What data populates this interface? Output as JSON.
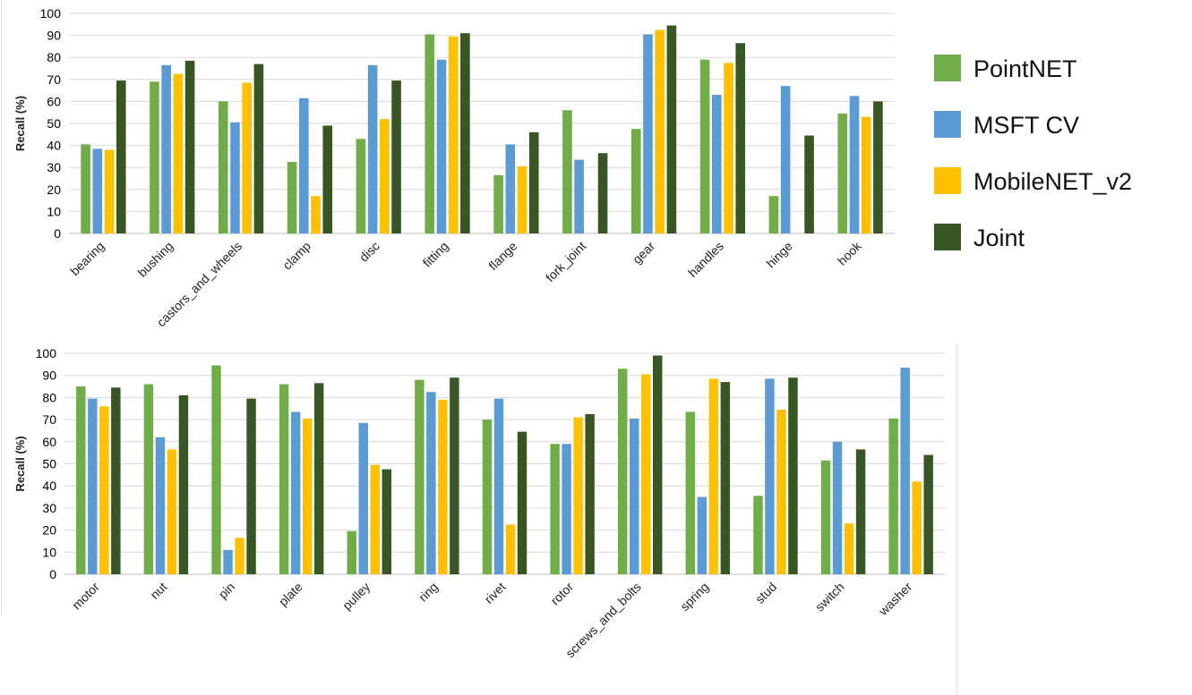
{
  "legend": [
    {
      "name": "PointNET",
      "color": "#70AD47"
    },
    {
      "name": "MSFT CV",
      "color": "#5B9BD5"
    },
    {
      "name": "MobileNET_v2",
      "color": "#FFC000"
    },
    {
      "name": "Joint",
      "color": "#375623"
    }
  ],
  "chart_data": [
    {
      "type": "bar",
      "title": "",
      "xlabel": "",
      "ylabel": "Recall (%)",
      "ylim": [
        0,
        100
      ],
      "yticks": [
        0,
        10,
        20,
        30,
        40,
        50,
        60,
        70,
        80,
        90,
        100
      ],
      "grid": true,
      "legend_position": "right",
      "categories": [
        "bearing",
        "bushing",
        "castors_and_wheels",
        "clamp",
        "disc",
        "fitting",
        "flange",
        "fork_joint",
        "gear",
        "handles",
        "hinge",
        "hook"
      ],
      "series": [
        {
          "name": "PointNET",
          "values": [
            40.5,
            69,
            60,
            32.5,
            43,
            90.5,
            26.5,
            56,
            47.5,
            79,
            17,
            54.5
          ]
        },
        {
          "name": "MSFT CV",
          "values": [
            38.5,
            76.5,
            50.5,
            61.5,
            76.5,
            79,
            40.5,
            33.5,
            90.5,
            63,
            67,
            62.5
          ]
        },
        {
          "name": "MobileNET_v2",
          "values": [
            38,
            72.5,
            68.5,
            17,
            52,
            89.5,
            30.5,
            0,
            92.5,
            77.5,
            0,
            53
          ]
        },
        {
          "name": "Joint",
          "values": [
            69.5,
            78.5,
            77,
            49,
            69.5,
            91,
            46,
            36.5,
            94.5,
            86.5,
            44.5,
            60
          ]
        }
      ]
    },
    {
      "type": "bar",
      "title": "",
      "xlabel": "",
      "ylabel": "Recall (%)",
      "ylim": [
        0,
        100
      ],
      "yticks": [
        0,
        10,
        20,
        30,
        40,
        50,
        60,
        70,
        80,
        90,
        100
      ],
      "grid": true,
      "legend_position": "right",
      "categories": [
        "motor",
        "nut",
        "pin",
        "plate",
        "pulley",
        "ring",
        "rivet",
        "rotor",
        "screws_and_bolts",
        "spring",
        "stud",
        "switch",
        "washer"
      ],
      "series": [
        {
          "name": "PointNET",
          "values": [
            85,
            86,
            94.5,
            86,
            19.5,
            88,
            70,
            59,
            93,
            73.5,
            35.5,
            51.5,
            70.5
          ]
        },
        {
          "name": "MSFT CV",
          "values": [
            79.5,
            62,
            11,
            73.5,
            68.5,
            82.5,
            79.5,
            59,
            70.5,
            35,
            88.5,
            60,
            93.5
          ]
        },
        {
          "name": "MobileNET_v2",
          "values": [
            76,
            56.5,
            16.5,
            70.5,
            49.5,
            79,
            22.5,
            71,
            90.5,
            88.5,
            74.5,
            23,
            42
          ]
        },
        {
          "name": "Joint",
          "values": [
            84.5,
            81,
            79.5,
            86.5,
            47.5,
            89,
            64.5,
            72.5,
            99,
            87,
            89,
            56.5,
            54
          ]
        }
      ]
    }
  ]
}
